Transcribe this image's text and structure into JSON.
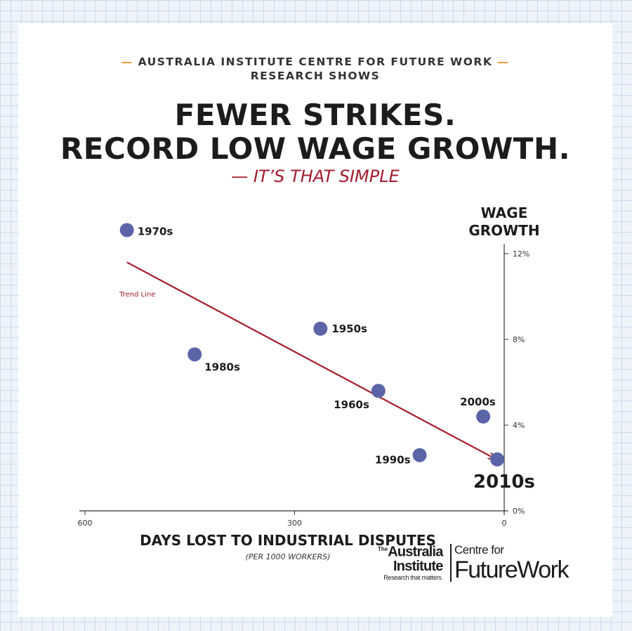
{
  "header": {
    "kicker_line1": "AUSTRALIA INSTITUTE CENTRE FOR FUTURE WORK",
    "kicker_line2": "RESEARCH SHOWS",
    "kicker_dash": "—",
    "headline_line1": "FEWER STRIKES.",
    "headline_line2": "RECORD LOW WAGE GROWTH.",
    "subhead": "— IT’S THAT SIMPLE"
  },
  "colors": {
    "accent_orange": "#f0922b",
    "trend_red": "#a51d2d",
    "point_fill": "#5c64a8",
    "text_dark": "#1c1c1c"
  },
  "chart_data": {
    "type": "scatter",
    "title": "FEWER STRIKES. RECORD LOW WAGE GROWTH.",
    "xlabel": "DAYS LOST TO INDUSTRIAL DISPUTES",
    "xlabel_sub": "(PER 1000 WORKERS)",
    "ylabel_line1": "WAGE",
    "ylabel_line2": "GROWTH",
    "x_axis_reversed": true,
    "xlim": [
      600,
      0
    ],
    "ylim": [
      0,
      12
    ],
    "x_ticks": [
      {
        "value": 600,
        "label": "600"
      },
      {
        "value": 300,
        "label": "300"
      },
      {
        "value": 0,
        "label": "0"
      }
    ],
    "y_ticks": [
      {
        "value": 12,
        "label": "12%"
      },
      {
        "value": 8,
        "label": "8%"
      },
      {
        "value": 4,
        "label": "4%"
      },
      {
        "value": 0,
        "label": "0%"
      }
    ],
    "grid": false,
    "points": [
      {
        "label": "1970s",
        "x": 540,
        "y": 13.1
      },
      {
        "label": "1950s",
        "x": 263,
        "y": 8.5
      },
      {
        "label": "1980s",
        "x": 443,
        "y": 7.3
      },
      {
        "label": "1960s",
        "x": 180,
        "y": 5.6
      },
      {
        "label": "2000s",
        "x": 30,
        "y": 4.4
      },
      {
        "label": "1990s",
        "x": 121,
        "y": 2.6
      },
      {
        "label": "2010s",
        "x": 10,
        "y": 2.4
      }
    ],
    "trend_line": {
      "label": "Trend Line",
      "from": {
        "x": 540,
        "y": 11.6
      },
      "to": {
        "x": 10,
        "y": 2.4
      }
    }
  }
}
